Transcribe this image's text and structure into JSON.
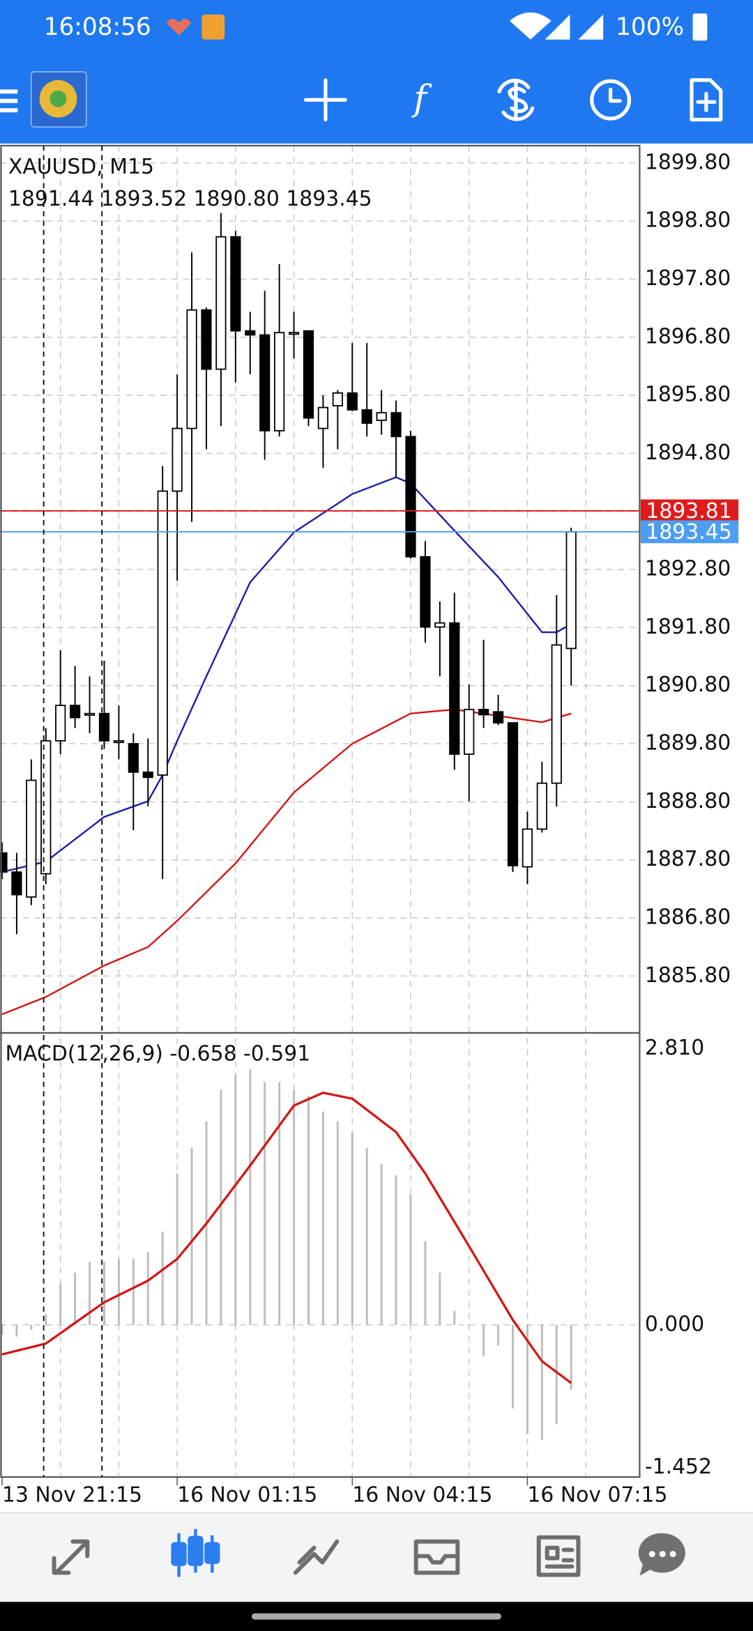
{
  "status_bar": {
    "time": "16:08:56",
    "battery": "100%"
  },
  "chart_data": [
    {
      "type": "candlestick",
      "title": "XAUUSD, M15",
      "subtitle": "1891.44 1893.52 1890.80 1893.45",
      "categories": [
        "13 Nov 21:15",
        null,
        null,
        null,
        null,
        null,
        null,
        null,
        null,
        null,
        null,
        null,
        "16 Nov 01:15",
        null,
        null,
        null,
        null,
        null,
        null,
        null,
        null,
        null,
        null,
        null,
        "16 Nov 04:15",
        null,
        null,
        null,
        null,
        null,
        null,
        null,
        null,
        null,
        null,
        null,
        "16 Nov 07:15",
        null,
        null,
        null
      ],
      "open": [
        1887.92,
        1887.59,
        1887.16,
        1887.56,
        1889.85,
        1890.46,
        1890.32,
        1890.32,
        1889.85,
        1889.8,
        1889.31,
        1889.26,
        1894.15,
        1895.23,
        1897.27,
        1896.25,
        1898.53,
        1896.91,
        1896.84,
        1895.19,
        1896.88,
        1896.91,
        1895.23,
        1895.62,
        1895.84,
        1895.55,
        1895.37,
        1895.5,
        1895.09,
        1893.02,
        1891.81,
        1891.88,
        1889.62,
        1890.39,
        1890.35,
        1890.16,
        1887.68,
        1888.33,
        1889.12,
        1891.44
      ],
      "high": [
        1888.1,
        1887.92,
        1889.53,
        1890.07,
        1891.41,
        1891.14,
        1890.96,
        1891.23,
        1890.46,
        1889.98,
        1889.89,
        1894.58,
        1896.16,
        1898.26,
        1897.31,
        1898.94,
        1898.63,
        1897.24,
        1897.6,
        1898.06,
        1897.24,
        1896.91,
        1895.8,
        1895.89,
        1896.7,
        1896.7,
        1895.89,
        1895.71,
        1895.19,
        1893.29,
        1892.25,
        1892.4,
        1890.82,
        1891.59,
        1890.64,
        1890.16,
        1888.63,
        1889.49,
        1892.36,
        1893.52
      ],
      "low": [
        1887.47,
        1886.52,
        1887.02,
        1887.38,
        1889.62,
        1890.07,
        1889.98,
        1889.71,
        1889.53,
        1888.31,
        1888.72,
        1887.47,
        1892.61,
        1893.62,
        1894.87,
        1895.27,
        1896.02,
        1896.16,
        1894.69,
        1895.09,
        1896.43,
        1895.27,
        1894.55,
        1894.87,
        1895.53,
        1895.09,
        1895.12,
        1894.4,
        1892.99,
        1891.54,
        1890.96,
        1889.35,
        1888.81,
        1890.07,
        1890.12,
        1887.59,
        1887.38,
        1888.27,
        1888.72,
        1890.8
      ],
      "close": [
        1887.59,
        1887.2,
        1889.17,
        1889.85,
        1890.46,
        1890.25,
        1890.32,
        1889.85,
        1889.85,
        1889.31,
        1889.22,
        1894.15,
        1895.23,
        1897.27,
        1896.25,
        1898.53,
        1896.91,
        1896.84,
        1895.19,
        1896.88,
        1896.88,
        1895.41,
        1895.59,
        1895.84,
        1895.55,
        1895.32,
        1895.5,
        1895.09,
        1893.02,
        1891.81,
        1891.88,
        1889.62,
        1890.39,
        1890.3,
        1890.16,
        1887.7,
        1888.33,
        1889.12,
        1891.5,
        1893.45
      ],
      "series": [
        {
          "color": "#1c1ca8",
          "x": [
            0,
            3,
            7,
            10,
            11,
            12,
            14,
            17,
            20,
            24,
            27,
            28,
            31,
            34,
            37,
            38,
            39
          ],
          "values": [
            1887.59,
            1887.77,
            1888.54,
            1888.81,
            1889.26,
            1889.85,
            1890.96,
            1892.58,
            1893.44,
            1894.1,
            1894.39,
            1894.28,
            1893.47,
            1892.67,
            1891.72,
            1891.72,
            1891.86
          ]
        },
        {
          "color": "#d41414",
          "x": [
            0,
            3,
            7,
            10,
            12,
            16,
            20,
            24,
            28,
            31,
            34,
            37,
            39
          ],
          "values": [
            1885.14,
            1885.44,
            1885.98,
            1886.3,
            1886.75,
            1887.74,
            1888.96,
            1889.8,
            1890.32,
            1890.39,
            1890.28,
            1890.17,
            1890.32
          ]
        }
      ],
      "price_lines": [
        {
          "value": 1893.81,
          "color": "#e01b1b"
        },
        {
          "value": 1893.45,
          "color": "#4d9ef2"
        }
      ],
      "ylim": [
        1884.82,
        1900.1
      ],
      "yticks": [
        {
          "value": 1899.8,
          "label": "1899.80"
        },
        {
          "value": 1898.8,
          "label": "1898.80"
        },
        {
          "value": 1897.8,
          "label": "1897.80"
        },
        {
          "value": 1896.8,
          "label": "1896.80"
        },
        {
          "value": 1895.8,
          "label": "1895.80"
        },
        {
          "value": 1894.8,
          "label": "1894.80"
        },
        {
          "value": 1893.8,
          "label": "1893.80"
        },
        {
          "value": 1892.8,
          "label": "1892.80"
        },
        {
          "value": 1891.8,
          "label": "1891.80"
        },
        {
          "value": 1890.8,
          "label": "1890.80"
        },
        {
          "value": 1889.8,
          "label": "1889.80"
        },
        {
          "value": 1888.8,
          "label": "1888.80"
        },
        {
          "value": 1887.8,
          "label": "1887.80"
        },
        {
          "value": 1886.8,
          "label": "1886.80"
        },
        {
          "value": 1885.8,
          "label": "1885.80"
        }
      ],
      "grid": true
    },
    {
      "type": "macd",
      "title": "MACD(12,26,9) -0.658 -0.591",
      "values": [
        -0.1,
        -0.12,
        -0.05,
        0.11,
        0.42,
        0.53,
        0.64,
        0.64,
        0.67,
        0.67,
        0.74,
        0.95,
        1.54,
        1.8,
        2.07,
        2.39,
        2.54,
        2.6,
        2.47,
        2.47,
        2.39,
        2.33,
        2.17,
        2.07,
        1.96,
        1.8,
        1.64,
        1.52,
        1.33,
        0.85,
        0.53,
        0.14,
        -0.01,
        -0.32,
        -0.21,
        -0.85,
        -1.11,
        -1.17,
        -1.01,
        -0.658
      ],
      "color": "#bdbdbd",
      "series": [
        {
          "color": "#d41414",
          "x": [
            0,
            3,
            7,
            10,
            12,
            14,
            17,
            20,
            22,
            24,
            27,
            29,
            32,
            35,
            37,
            39
          ],
          "values": [
            -0.3,
            -0.19,
            0.23,
            0.45,
            0.67,
            1.03,
            1.62,
            2.23,
            2.36,
            2.3,
            1.96,
            1.54,
            0.8,
            0.05,
            -0.37,
            -0.591
          ]
        }
      ],
      "ylim": [
        -1.452,
        2.81
      ],
      "yticks": [
        {
          "value": 2.81,
          "label": "2.810"
        },
        {
          "value": 0,
          "label": "0.000"
        },
        {
          "value": -1.452,
          "label": "-1.452"
        }
      ]
    }
  ]
}
